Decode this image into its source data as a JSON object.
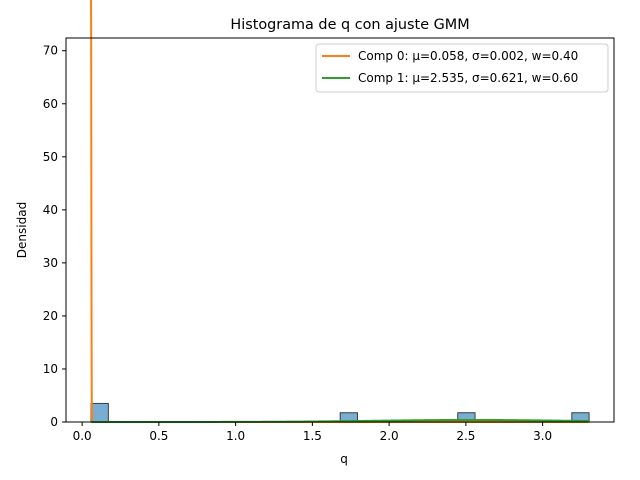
{
  "chart_data": {
    "type": "bar",
    "title": "Histograma de q con ajuste GMM",
    "xlabel": "q",
    "ylabel": "Densidad",
    "xlim": [
      -0.105,
      3.465
    ],
    "ylim": [
      0,
      72.4
    ],
    "xticks": [
      0.0,
      0.5,
      1.0,
      1.5,
      2.0,
      2.5,
      3.0
    ],
    "xtick_labels": [
      "0.0",
      "0.5",
      "1.0",
      "1.5",
      "2.0",
      "2.5",
      "3.0"
    ],
    "yticks": [
      0,
      10,
      20,
      30,
      40,
      50,
      60,
      70
    ],
    "ytick_labels": [
      "0",
      "10",
      "20",
      "30",
      "40",
      "50",
      "60",
      "70"
    ],
    "grid": false,
    "legend": "top-right",
    "histogram": {
      "bin_width": 0.113,
      "bins": [
        {
          "x0": 0.058,
          "height": 3.5
        },
        {
          "x0": 1.681,
          "height": 1.75
        },
        {
          "x0": 2.447,
          "height": 1.75
        },
        {
          "x0": 3.19,
          "height": 1.75
        }
      ],
      "color": "#1f77b4"
    },
    "series": [
      {
        "name": "Comp 0: μ=0.058, σ=0.002, w=0.40",
        "color": "#ff7f0e",
        "mu": 0.058,
        "sigma": 0.002,
        "w": 0.4
      },
      {
        "name": "Comp 1: μ=2.535, σ=0.621, w=0.60",
        "color": "#2ca02c",
        "mu": 2.535,
        "sigma": 0.621,
        "w": 0.6
      }
    ],
    "curve_range": [
      0.058,
      3.303
    ]
  }
}
